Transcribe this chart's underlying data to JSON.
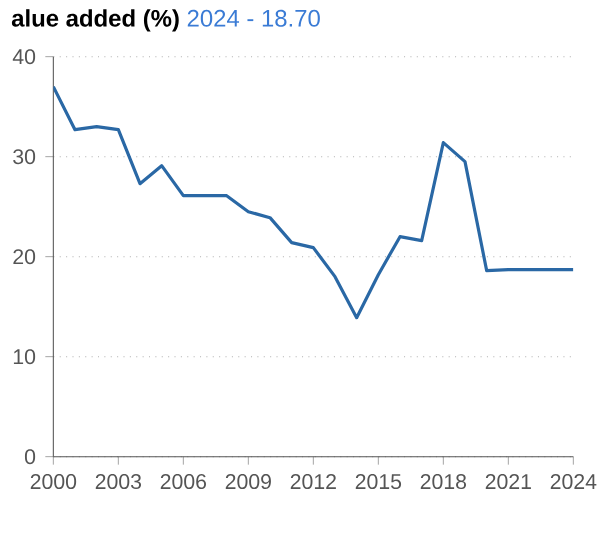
{
  "chart_data": {
    "type": "line",
    "title": "alue added (%)",
    "subtitle": "2024 - 18.70",
    "x": [
      2000,
      2001,
      2002,
      2003,
      2004,
      2005,
      2006,
      2007,
      2008,
      2009,
      2010,
      2011,
      2012,
      2013,
      2014,
      2015,
      2016,
      2017,
      2018,
      2019,
      2020,
      2021,
      2022,
      2023,
      2024
    ],
    "values": [
      37.0,
      32.7,
      33.0,
      32.7,
      27.3,
      29.1,
      26.1,
      26.1,
      26.1,
      24.5,
      23.9,
      21.4,
      20.9,
      18.0,
      13.9,
      18.2,
      22.0,
      21.6,
      31.4,
      29.5,
      18.6,
      18.7,
      18.7,
      18.7,
      18.7
    ],
    "color": "#2a68a5",
    "xlim": [
      2000,
      2024
    ],
    "xticks": [
      2000,
      2003,
      2006,
      2009,
      2012,
      2015,
      2018,
      2021,
      2024
    ],
    "ylim": [
      0,
      40
    ],
    "yticks": [
      0,
      10,
      20,
      30,
      40
    ],
    "grid": "y",
    "line_style": "solid"
  }
}
